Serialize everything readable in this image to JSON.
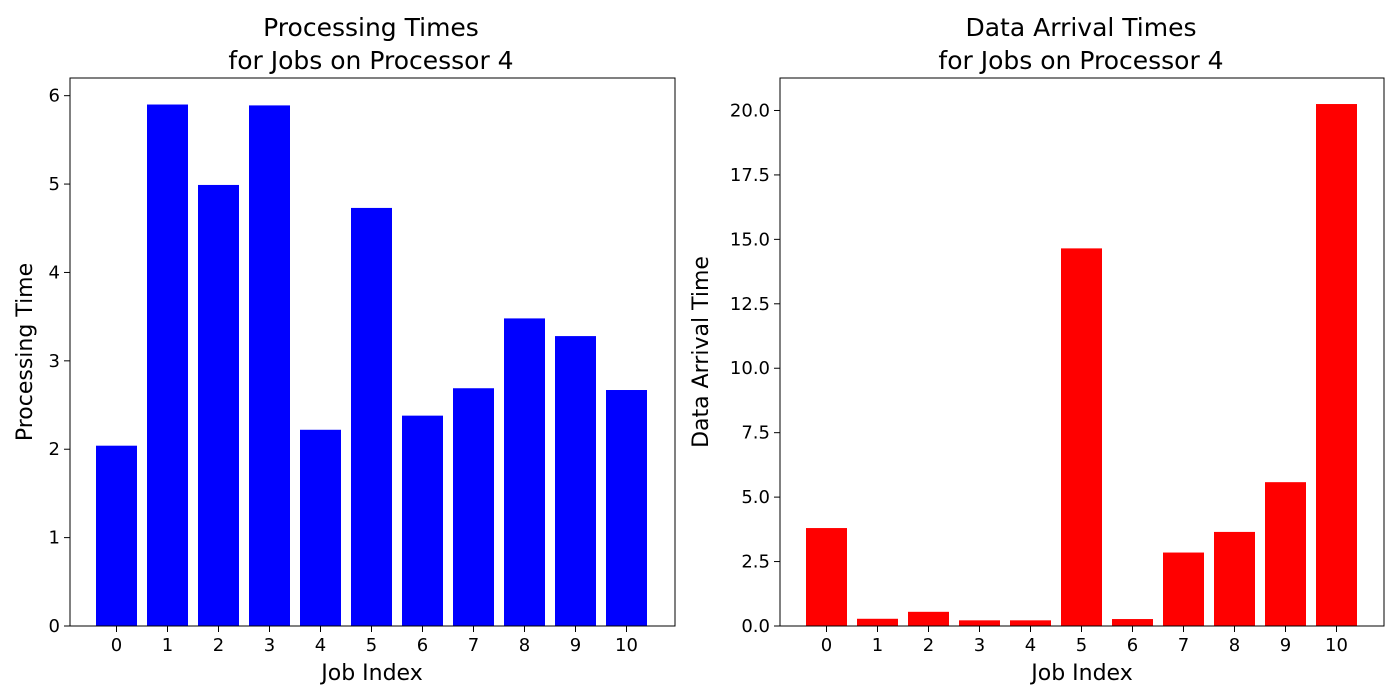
{
  "chart_data": [
    {
      "type": "bar",
      "title_lines": [
        "Processing Times",
        "for Jobs on Processor 4"
      ],
      "xlabel": "Job Index",
      "ylabel": "Processing Time",
      "categories": [
        "0",
        "1",
        "2",
        "3",
        "4",
        "5",
        "6",
        "7",
        "8",
        "9",
        "10"
      ],
      "values": [
        2.04,
        5.9,
        4.99,
        5.89,
        2.22,
        4.73,
        2.38,
        2.69,
        3.48,
        3.28,
        2.67
      ],
      "ylim": [
        0,
        6.2
      ],
      "yticks": [
        0,
        1,
        2,
        3,
        4,
        5,
        6
      ],
      "ytick_labels": [
        "0",
        "1",
        "2",
        "3",
        "4",
        "5",
        "6"
      ],
      "color": "#0000ff",
      "grid": false
    },
    {
      "type": "bar",
      "title_lines": [
        "Data Arrival Times",
        "for Jobs on Processor 4"
      ],
      "xlabel": "Job Index",
      "ylabel": "Data Arrival Time",
      "categories": [
        "0",
        "1",
        "2",
        "3",
        "4",
        "5",
        "6",
        "7",
        "8",
        "9",
        "10"
      ],
      "values": [
        3.8,
        0.28,
        0.55,
        0.22,
        0.22,
        14.65,
        0.27,
        2.85,
        3.65,
        5.58,
        20.25
      ],
      "ylim": [
        0,
        21.26
      ],
      "yticks": [
        0,
        2.5,
        5,
        7.5,
        10,
        12.5,
        15,
        17.5,
        20
      ],
      "ytick_labels": [
        "0.0",
        "2.5",
        "5.0",
        "7.5",
        "10.0",
        "12.5",
        "15.0",
        "17.5",
        "20.0"
      ],
      "color": "#ff0000",
      "grid": false
    }
  ]
}
